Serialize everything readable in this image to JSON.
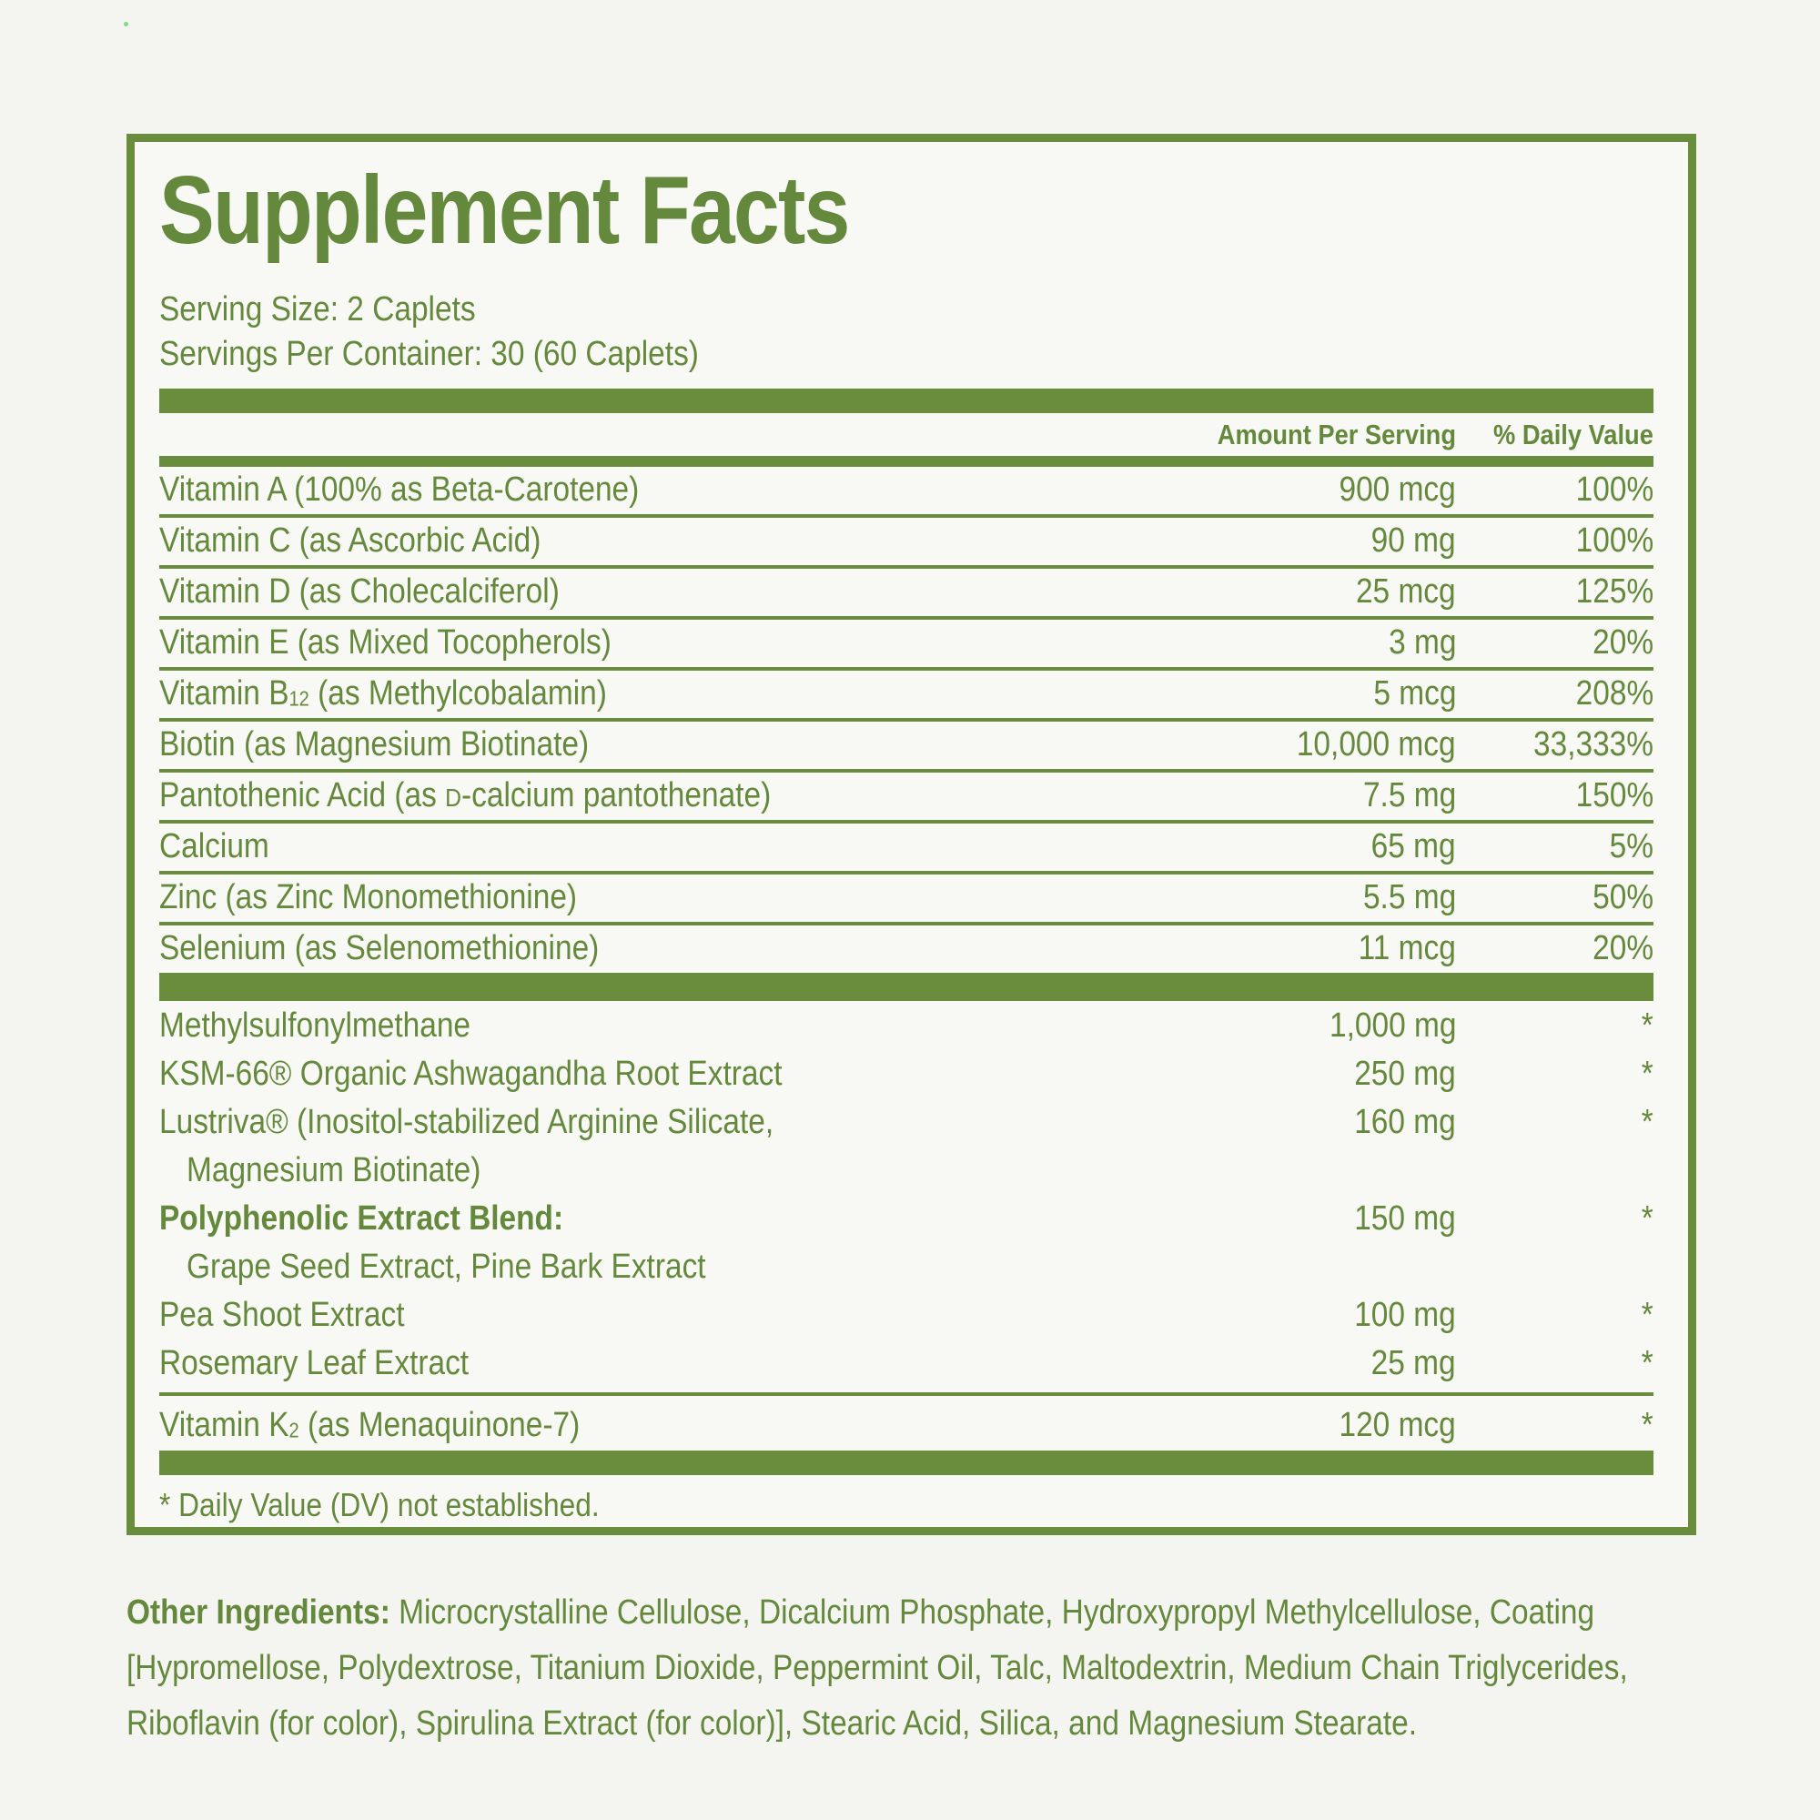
{
  "colors": {
    "accent": "#6a8d3d",
    "text": "#65893c",
    "page_bg": "#f4f4f1",
    "panel_bg": "#f8f8f5",
    "speck": "#62d56f"
  },
  "panel": {
    "title": "Supplement Facts",
    "serving_size": "Serving Size: 2 Caplets",
    "servings_per_container": "Servings Per Container: 30 (60 Caplets)",
    "columns": {
      "amount": "Amount Per Serving",
      "daily_value": "% Daily Value"
    },
    "nutrients": [
      {
        "name": "Vitamin A (100% as Beta-Carotene)",
        "amount": "900 mcg",
        "dv": "100%"
      },
      {
        "name": "Vitamin C (as Ascorbic Acid)",
        "amount": "90 mg",
        "dv": "100%"
      },
      {
        "name": "Vitamin D (as Cholecalciferol)",
        "amount": "25 mcg",
        "dv": "125%"
      },
      {
        "name": "Vitamin E (as Mixed Tocopherols)",
        "amount": "3 mg",
        "dv": "20%"
      },
      {
        "name_pre": "Vitamin B",
        "name_sub": "12",
        "name_post": " (as Methylcobalamin)",
        "amount": "5 mcg",
        "dv": "208%"
      },
      {
        "name": "Biotin (as Magnesium Biotinate)",
        "amount": "10,000 mcg",
        "dv": "33,333%"
      },
      {
        "name_pre": "Pantothenic Acid (as ",
        "name_sc": "D",
        "name_post": "-calcium pantothenate)",
        "amount": "7.5 mg",
        "dv": "150%"
      },
      {
        "name": "Calcium",
        "amount": "65 mg",
        "dv": "5%"
      },
      {
        "name": "Zinc (as Zinc Monomethionine)",
        "amount": "5.5 mg",
        "dv": "50%"
      },
      {
        "name": "Selenium (as Selenomethionine)",
        "amount": "11 mcg",
        "dv": "20%"
      }
    ],
    "botanicals": [
      {
        "name": "Methylsulfonylmethane",
        "amount": "1,000 mg",
        "dv": "*"
      },
      {
        "name": "KSM-66® Organic Ashwagandha Root Extract",
        "amount": "250 mg",
        "dv": "*"
      },
      {
        "name": "Lustriva® (Inositol-stabilized Arginine Silicate,",
        "name_line2": "Magnesium Biotinate)",
        "amount": "160 mg",
        "dv": "*"
      },
      {
        "name": "Polyphenolic Extract Blend:",
        "subline": "Grape Seed Extract, Pine Bark Extract",
        "amount": "150 mg",
        "dv": "*"
      },
      {
        "name": "Pea Shoot Extract",
        "amount": "100 mg",
        "dv": "*"
      },
      {
        "name": "Rosemary Leaf Extract",
        "amount": "25 mg",
        "dv": "*"
      }
    ],
    "vitamin_k2": {
      "name_pre": "Vitamin K",
      "name_sub": "2",
      "name_post": " (as Menaquinone-7)",
      "amount": "120 mcg",
      "dv": "*"
    },
    "footnote": "* Daily Value (DV) not established."
  },
  "other_ingredients": {
    "label": "Other Ingredients:",
    "text": " Microcrystalline Cellulose, Dicalcium Phosphate, Hydroxypropyl Methylcellulose, Coating [Hypromellose, Polydextrose, Titanium Dioxide, Peppermint Oil, Talc, Maltodextrin, Medium Chain Triglycerides, Riboflavin (for color), Spirulina Extract (for color)], Stearic Acid, Silica, and Magnesium Stearate."
  }
}
